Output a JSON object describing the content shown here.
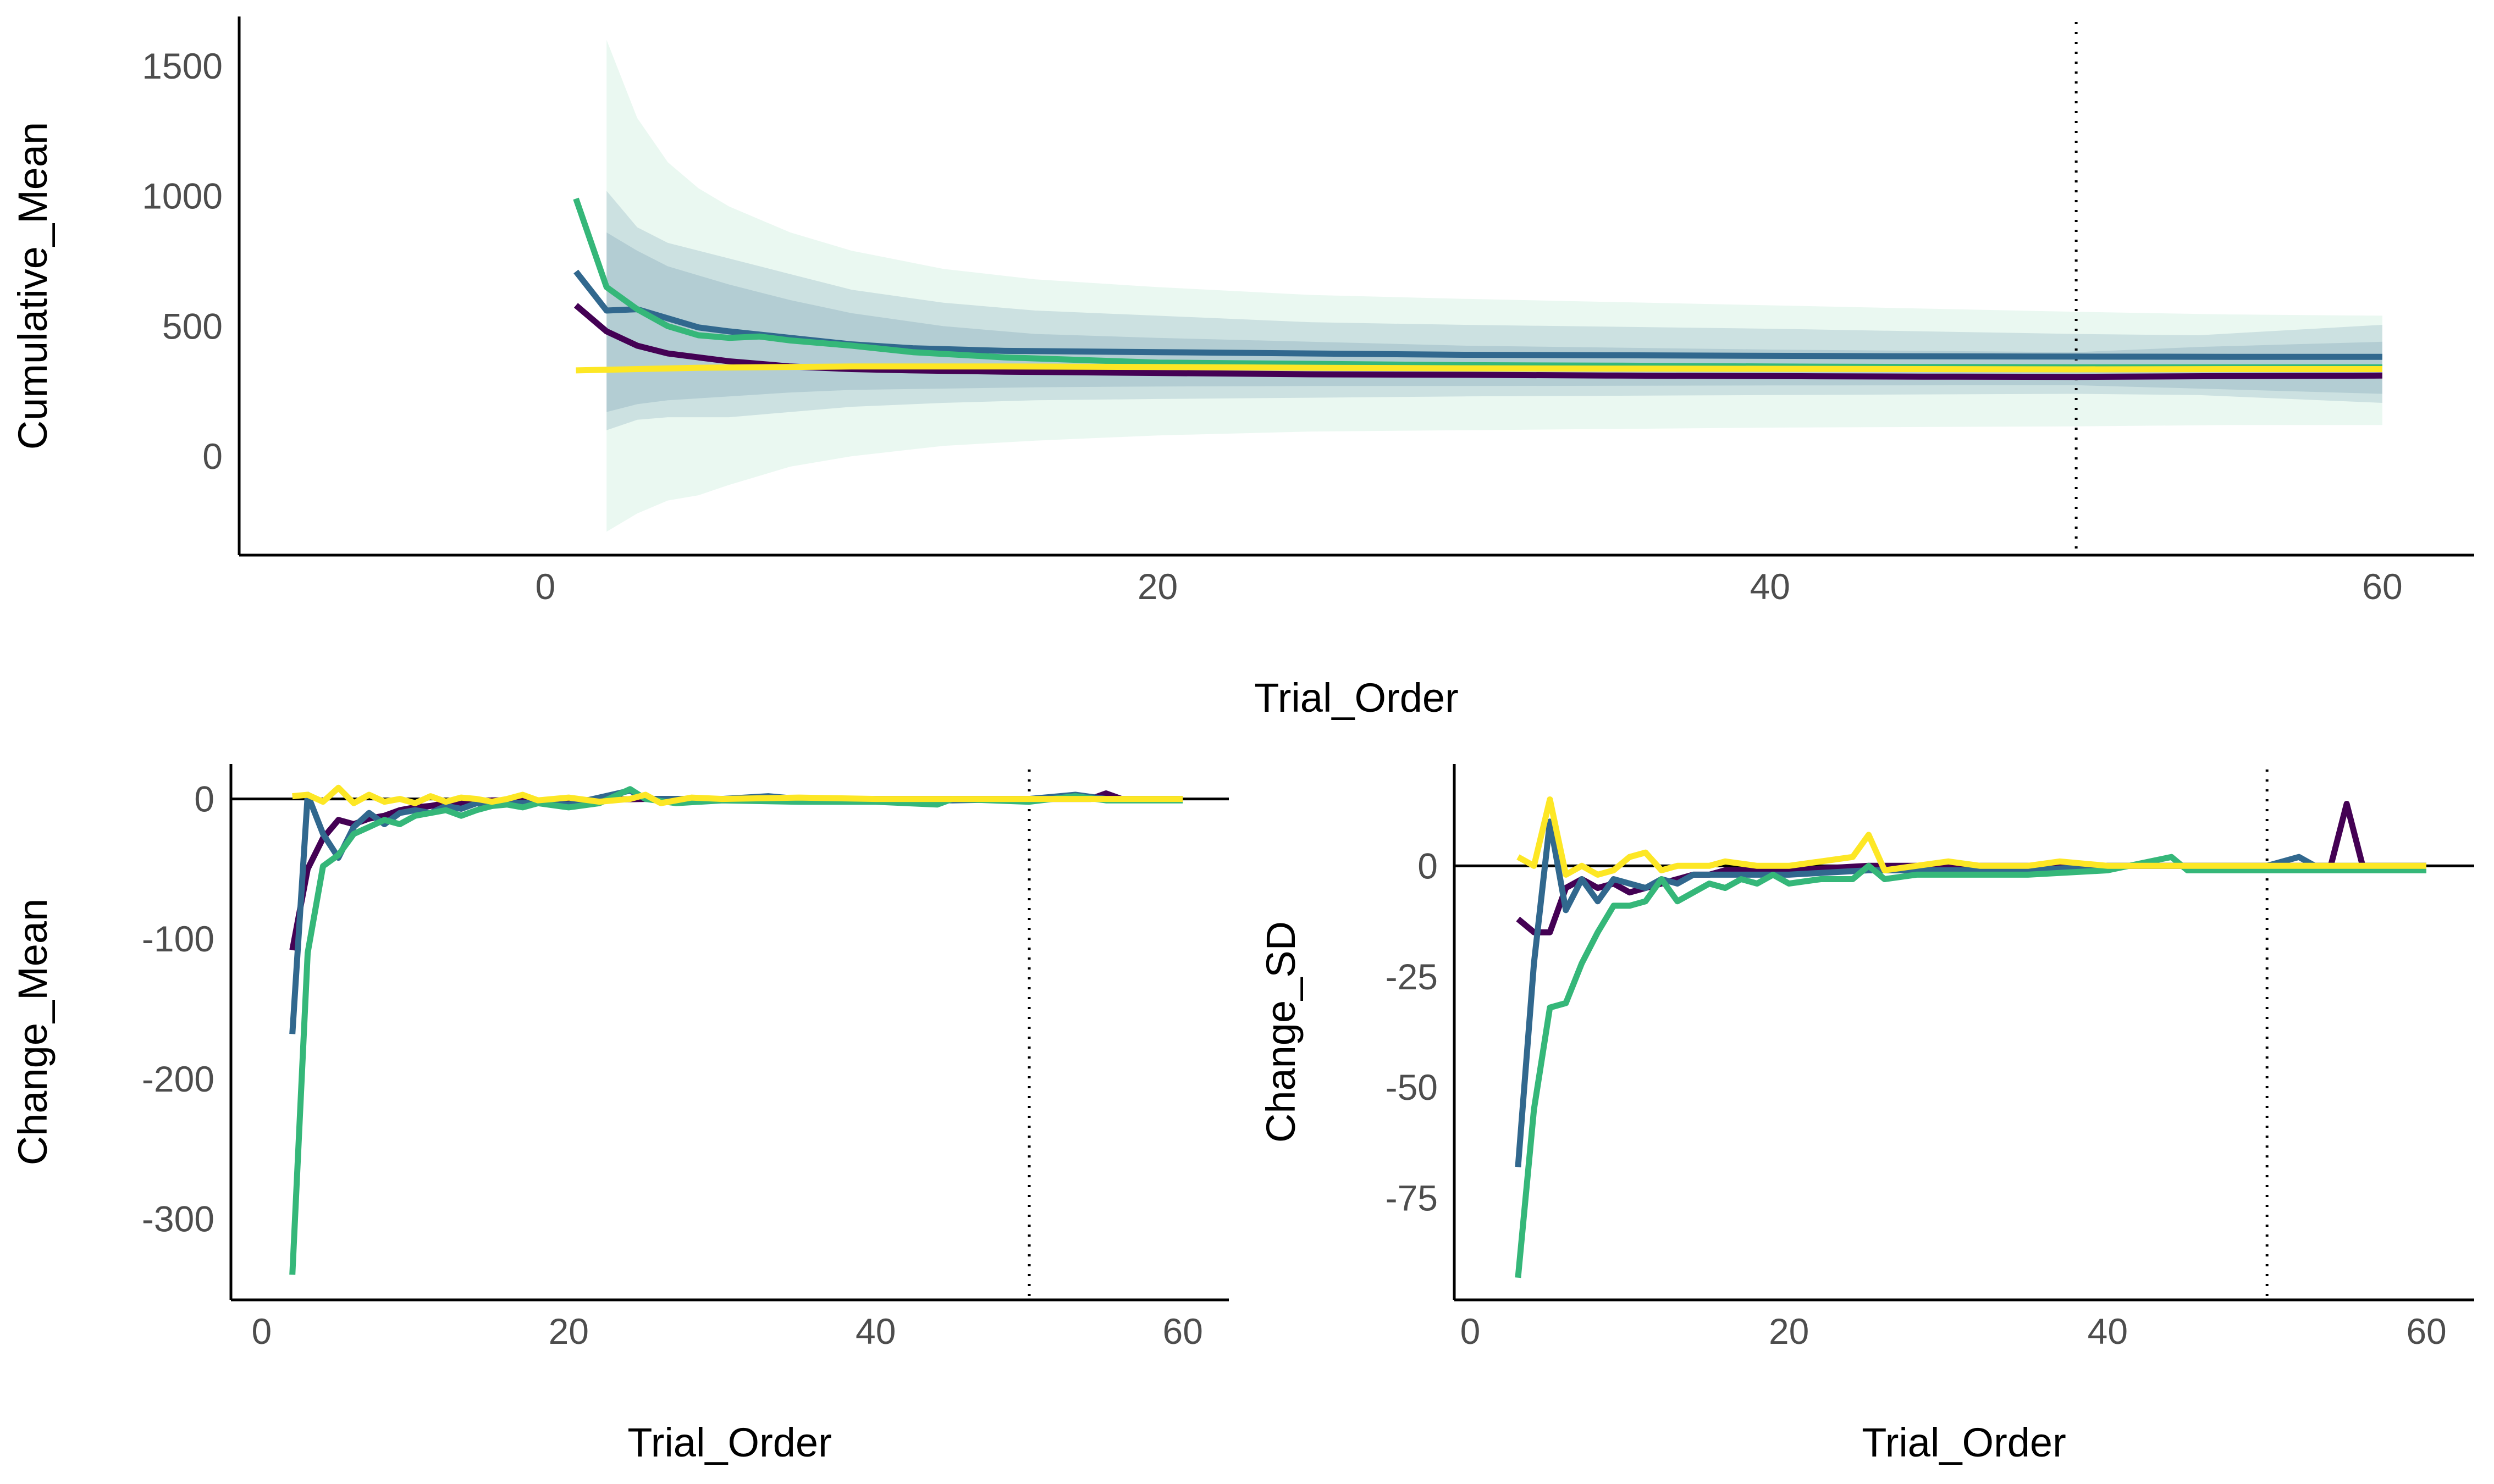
{
  "colors": {
    "s1": "#440154",
    "s2": "#31688e",
    "s3": "#35b779",
    "s4": "#fde725",
    "band_light": "#35b779",
    "band_dark": "#31688e"
  },
  "chart_data": [
    {
      "type": "line",
      "panel": "top",
      "xlabel": "Trial_Order",
      "ylabel": "Cumulative_Mean",
      "xlim": [
        -10,
        63
      ],
      "ylim": [
        -380,
        1690
      ],
      "x_ticks": [
        0,
        20,
        40,
        60
      ],
      "x_tick_labels": [
        "0",
        "20",
        "40",
        "60"
      ],
      "y_ticks": [
        0,
        500,
        1000,
        1500
      ],
      "y_tick_labels": [
        "0",
        "500",
        "1000",
        "1500"
      ],
      "vline": 50,
      "grid": false,
      "bands": [
        {
          "x": [
            2,
            3,
            4,
            5,
            6,
            8,
            10,
            13,
            16,
            20,
            25,
            30,
            40,
            50,
            55,
            60
          ],
          "upper": [
            1600,
            1300,
            1130,
            1030,
            960,
            860,
            790,
            720,
            680,
            650,
            620,
            605,
            580,
            555,
            545,
            540
          ],
          "lower": [
            -290,
            -220,
            -170,
            -150,
            -110,
            -40,
            0,
            40,
            60,
            80,
            95,
            100,
            110,
            115,
            120,
            120
          ]
        },
        {
          "x": [
            2,
            3,
            4,
            6,
            8,
            10,
            13,
            16,
            20,
            25,
            30,
            40,
            50,
            54,
            60
          ],
          "upper": [
            1020,
            880,
            820,
            760,
            700,
            640,
            590,
            560,
            540,
            515,
            505,
            490,
            470,
            465,
            505
          ],
          "lower": [
            100,
            140,
            150,
            150,
            170,
            190,
            205,
            215,
            220,
            225,
            230,
            235,
            240,
            235,
            205
          ]
        },
        {
          "x": [
            2,
            3,
            4,
            6,
            8,
            10,
            13,
            16,
            20,
            25,
            30,
            40,
            50,
            54,
            60
          ],
          "upper": [
            860,
            790,
            730,
            660,
            600,
            550,
            500,
            470,
            455,
            440,
            425,
            410,
            400,
            420,
            440
          ],
          "lower": [
            170,
            200,
            215,
            230,
            245,
            255,
            260,
            265,
            268,
            270,
            270,
            272,
            273,
            260,
            240
          ]
        }
      ],
      "series": [
        {
          "color_key": "s1",
          "x": [
            1,
            2,
            3,
            4,
            5,
            6,
            7,
            8,
            10,
            12,
            15,
            20,
            25,
            30,
            35,
            40,
            45,
            50,
            55,
            60
          ],
          "values": [
            580,
            480,
            425,
            395,
            380,
            365,
            355,
            345,
            335,
            330,
            325,
            320,
            315,
            313,
            310,
            308,
            306,
            305,
            308,
            310
          ]
        },
        {
          "color_key": "s2",
          "x": [
            1,
            2,
            3,
            4,
            5,
            6,
            8,
            10,
            12,
            15,
            20,
            25,
            30,
            35,
            40,
            45,
            50,
            55,
            60
          ],
          "values": [
            710,
            560,
            565,
            530,
            495,
            480,
            455,
            430,
            415,
            405,
            400,
            395,
            390,
            388,
            386,
            384,
            383,
            382,
            382
          ]
        },
        {
          "color_key": "s3",
          "x": [
            1,
            2,
            3,
            4,
            5,
            6,
            7,
            8,
            10,
            12,
            15,
            20,
            25,
            30,
            35,
            40,
            45,
            50,
            55,
            60
          ],
          "values": [
            990,
            650,
            565,
            500,
            465,
            455,
            460,
            445,
            425,
            400,
            380,
            360,
            355,
            350,
            348,
            345,
            343,
            342,
            342,
            342
          ]
        },
        {
          "color_key": "s4",
          "x": [
            1,
            5,
            10,
            15,
            20,
            25,
            30,
            35,
            40,
            45,
            50,
            55,
            60
          ],
          "values": [
            330,
            340,
            345,
            345,
            343,
            340,
            338,
            337,
            336,
            335,
            334,
            335,
            335
          ]
        }
      ]
    },
    {
      "type": "line",
      "panel": "bottom-left",
      "xlabel": "Trial_Order",
      "ylabel": "Change_Mean",
      "xlim": [
        -2,
        63
      ],
      "ylim": [
        -358,
        25
      ],
      "x_ticks": [
        0,
        20,
        40,
        60
      ],
      "x_tick_labels": [
        "0",
        "20",
        "40",
        "60"
      ],
      "y_ticks": [
        0,
        -100,
        -200,
        -300
      ],
      "y_tick_labels": [
        "0",
        "-100",
        "-200",
        "-300"
      ],
      "hline": 0,
      "vline": 50,
      "grid": false,
      "series": [
        {
          "color_key": "s1",
          "x": [
            2,
            3,
            4,
            5,
            6,
            7,
            8,
            9,
            10,
            11,
            12,
            13,
            14,
            15,
            16,
            18,
            20,
            25,
            30,
            35,
            40,
            45,
            50,
            54,
            55,
            56,
            60
          ],
          "values": [
            -108,
            -50,
            -28,
            -15,
            -18,
            -14,
            -12,
            -8,
            -6,
            -5,
            -3,
            -3,
            -2,
            -1,
            -1,
            -1,
            -1,
            0,
            0,
            0,
            0,
            0,
            0,
            0,
            4,
            0,
            0
          ]
        },
        {
          "color_key": "s2",
          "x": [
            2,
            3,
            4,
            5,
            6,
            7,
            8,
            9,
            10,
            11,
            12,
            13,
            14,
            15,
            16,
            18,
            20,
            24,
            25,
            30,
            33,
            35,
            40,
            45,
            50,
            53,
            55,
            60
          ],
          "values": [
            -168,
            3,
            -25,
            -42,
            -20,
            -10,
            -18,
            -10,
            -8,
            -10,
            -5,
            -7,
            -3,
            -5,
            -3,
            -3,
            -4,
            6,
            0,
            0,
            2,
            0,
            0,
            -1,
            0,
            3,
            0,
            0
          ]
        },
        {
          "color_key": "s3",
          "x": [
            2,
            3,
            4,
            5,
            6,
            7,
            8,
            9,
            10,
            11,
            12,
            13,
            14,
            15,
            16,
            17,
            18,
            20,
            22,
            24,
            25,
            27,
            30,
            35,
            40,
            44,
            45,
            50,
            53,
            55,
            60
          ],
          "values": [
            -340,
            -110,
            -48,
            -40,
            -25,
            -20,
            -15,
            -18,
            -12,
            -10,
            -8,
            -12,
            -8,
            -5,
            -4,
            -6,
            -3,
            -6,
            -3,
            7,
            0,
            -3,
            -1,
            -2,
            -2,
            -4,
            0,
            -2,
            2,
            -1,
            -1
          ]
        },
        {
          "color_key": "s4",
          "x": [
            2,
            3,
            4,
            5,
            6,
            7,
            8,
            9,
            10,
            11,
            12,
            13,
            14,
            15,
            16,
            17,
            18,
            20,
            22,
            24,
            25,
            26,
            28,
            30,
            35,
            40,
            45,
            50,
            55,
            60
          ],
          "values": [
            2,
            3,
            -2,
            8,
            -3,
            3,
            -2,
            0,
            -3,
            2,
            -2,
            1,
            0,
            -2,
            0,
            3,
            -1,
            1,
            -2,
            0,
            3,
            -3,
            1,
            0,
            1,
            0,
            0,
            0,
            0,
            0
          ]
        }
      ]
    },
    {
      "type": "line",
      "panel": "bottom-right",
      "xlabel": "Trial_Order",
      "ylabel": "Change_SD",
      "xlim": [
        -1,
        63
      ],
      "ylim": [
        -98,
        23
      ],
      "x_ticks": [
        0,
        20,
        40,
        60
      ],
      "x_tick_labels": [
        "0",
        "20",
        "40",
        "60"
      ],
      "y_ticks": [
        0,
        -25,
        -50,
        -75
      ],
      "y_tick_labels": [
        "0",
        "-25",
        "-50",
        "-75"
      ],
      "hline": 0,
      "vline": 50,
      "grid": false,
      "series": [
        {
          "color_key": "s1",
          "x": [
            3,
            4,
            5,
            6,
            7,
            8,
            9,
            10,
            11,
            12,
            13,
            14,
            15,
            16,
            18,
            20,
            25,
            30,
            35,
            40,
            45,
            50,
            53,
            54,
            55,
            56,
            57,
            60
          ],
          "values": [
            -12,
            -15,
            -15,
            -5,
            -3,
            -5,
            -4,
            -6,
            -5,
            -4,
            -3,
            -2,
            -2,
            -1,
            -1,
            -1,
            0,
            0,
            0,
            0,
            0,
            0,
            0,
            0,
            14,
            0,
            0,
            0
          ]
        },
        {
          "color_key": "s2",
          "x": [
            3,
            4,
            5,
            6,
            7,
            8,
            9,
            10,
            11,
            12,
            13,
            14,
            15,
            16,
            18,
            20,
            25,
            30,
            35,
            40,
            45,
            50,
            52,
            53,
            55,
            60
          ],
          "values": [
            -68,
            -22,
            10,
            -10,
            -3,
            -8,
            -3,
            -4,
            -5,
            -3,
            -4,
            -2,
            -2,
            -2,
            -2,
            -2,
            -1,
            -1,
            -1,
            0,
            0,
            0,
            2,
            0,
            0,
            0
          ]
        },
        {
          "color_key": "s3",
          "x": [
            3,
            4,
            5,
            6,
            7,
            8,
            9,
            10,
            11,
            12,
            13,
            14,
            15,
            16,
            17,
            18,
            19,
            20,
            22,
            24,
            25,
            26,
            28,
            30,
            35,
            40,
            44,
            45,
            50,
            55,
            60
          ],
          "values": [
            -93,
            -55,
            -32,
            -31,
            -22,
            -15,
            -9,
            -9,
            -8,
            -3,
            -8,
            -6,
            -4,
            -5,
            -3,
            -4,
            -2,
            -4,
            -3,
            -3,
            0,
            -3,
            -2,
            -2,
            -2,
            -1,
            2,
            -1,
            -1,
            -1,
            -1
          ]
        },
        {
          "color_key": "s4",
          "x": [
            3,
            4,
            5,
            6,
            7,
            8,
            9,
            10,
            11,
            12,
            13,
            14,
            15,
            16,
            18,
            20,
            22,
            24,
            25,
            26,
            28,
            30,
            32,
            35,
            37,
            40,
            45,
            50,
            55,
            60
          ],
          "values": [
            2,
            0,
            15,
            -2,
            0,
            -2,
            -1,
            2,
            3,
            -1,
            0,
            0,
            0,
            1,
            0,
            0,
            1,
            2,
            7,
            -1,
            0,
            1,
            0,
            0,
            1,
            0,
            0,
            0,
            0,
            0
          ]
        }
      ]
    }
  ]
}
